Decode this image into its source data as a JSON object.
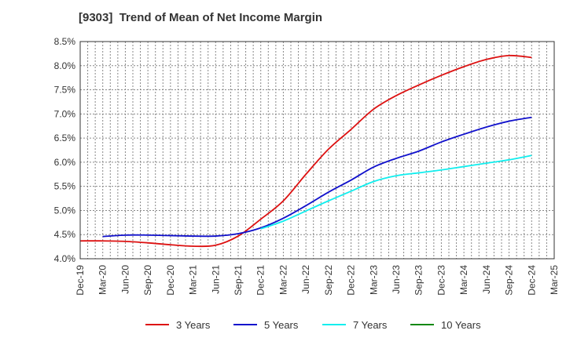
{
  "chart_data": {
    "type": "line",
    "title": "[9303]  Trend of Mean of Net Income Margin",
    "x_ticks": [
      "Dec-19",
      "Mar-20",
      "Jun-20",
      "Sep-20",
      "Dec-20",
      "Mar-21",
      "Jun-21",
      "Sep-21",
      "Dec-21",
      "Mar-22",
      "Jun-22",
      "Sep-22",
      "Dec-22",
      "Mar-23",
      "Jun-23",
      "Sep-23",
      "Dec-23",
      "Mar-24",
      "Jun-24",
      "Sep-24",
      "Dec-24",
      "Mar-25"
    ],
    "y_ticks": [
      "4.0%",
      "4.5%",
      "5.0%",
      "5.5%",
      "6.0%",
      "6.5%",
      "7.0%",
      "7.5%",
      "8.0%",
      "8.5%"
    ],
    "ylim": [
      4.0,
      8.5
    ],
    "y_unit": "%",
    "grid": true,
    "legend_position": "bottom",
    "series": [
      {
        "name": "3 Years",
        "color": "#dd1111",
        "points": [
          [
            "Dec-19",
            4.37
          ],
          [
            "Mar-20",
            4.37
          ],
          [
            "Jun-20",
            4.36
          ],
          [
            "Sep-20",
            4.33
          ],
          [
            "Dec-20",
            4.29
          ],
          [
            "Mar-21",
            4.26
          ],
          [
            "Jun-21",
            4.28
          ],
          [
            "Sep-21",
            4.47
          ],
          [
            "Dec-21",
            4.82
          ],
          [
            "Mar-22",
            5.2
          ],
          [
            "Jun-22",
            5.75
          ],
          [
            "Sep-22",
            6.27
          ],
          [
            "Dec-22",
            6.68
          ],
          [
            "Mar-23",
            7.1
          ],
          [
            "Jun-23",
            7.38
          ],
          [
            "Sep-23",
            7.6
          ],
          [
            "Dec-23",
            7.8
          ],
          [
            "Mar-24",
            7.98
          ],
          [
            "Jun-24",
            8.13
          ],
          [
            "Sep-24",
            8.21
          ],
          [
            "Dec-24",
            8.17
          ]
        ]
      },
      {
        "name": "5 Years",
        "color": "#1111cc",
        "points": [
          [
            "Mar-20",
            4.46
          ],
          [
            "Jun-20",
            4.49
          ],
          [
            "Sep-20",
            4.49
          ],
          [
            "Dec-20",
            4.48
          ],
          [
            "Mar-21",
            4.47
          ],
          [
            "Jun-21",
            4.47
          ],
          [
            "Sep-21",
            4.52
          ],
          [
            "Dec-21",
            4.64
          ],
          [
            "Mar-22",
            4.84
          ],
          [
            "Jun-22",
            5.1
          ],
          [
            "Sep-22",
            5.38
          ],
          [
            "Dec-22",
            5.63
          ],
          [
            "Mar-23",
            5.9
          ],
          [
            "Jun-23",
            6.08
          ],
          [
            "Sep-23",
            6.23
          ],
          [
            "Dec-23",
            6.42
          ],
          [
            "Mar-24",
            6.58
          ],
          [
            "Jun-24",
            6.73
          ],
          [
            "Sep-24",
            6.85
          ],
          [
            "Dec-24",
            6.93
          ]
        ]
      },
      {
        "name": "7 Years",
        "color": "#11eeee",
        "points": [
          [
            "Dec-21",
            4.62
          ],
          [
            "Mar-22",
            4.78
          ],
          [
            "Jun-22",
            4.99
          ],
          [
            "Sep-22",
            5.2
          ],
          [
            "Dec-22",
            5.4
          ],
          [
            "Mar-23",
            5.6
          ],
          [
            "Jun-23",
            5.72
          ],
          [
            "Sep-23",
            5.78
          ],
          [
            "Dec-23",
            5.84
          ],
          [
            "Mar-24",
            5.91
          ],
          [
            "Jun-24",
            5.98
          ],
          [
            "Sep-24",
            6.05
          ],
          [
            "Dec-24",
            6.14
          ]
        ]
      },
      {
        "name": "10 Years",
        "color": "#118811",
        "points": []
      }
    ]
  }
}
